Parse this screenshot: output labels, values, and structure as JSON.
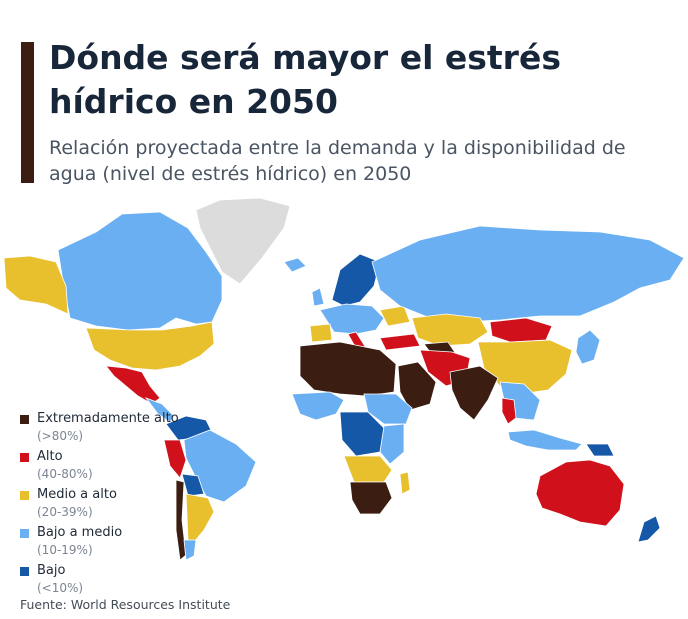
{
  "header": {
    "title": "Dónde será mayor el estrés hídrico en 2050",
    "subtitle": "Relación proyectada entre la demanda y la disponibilidad de agua (nivel de estrés hídrico) en 2050"
  },
  "legend": [
    {
      "label": "Extremadamente alto",
      "range": "(>80%)",
      "color": "#3b1d12"
    },
    {
      "label": "Alto",
      "range": "(40-80%)",
      "color": "#d0111b"
    },
    {
      "label": "Medio a alto",
      "range": "(20-39%)",
      "color": "#e8bf2d"
    },
    {
      "label": "Bajo a medio",
      "range": "(10-19%)",
      "color": "#6aaff2"
    },
    {
      "label": "Bajo",
      "range": "(<10%)",
      "color": "#1558a8"
    }
  ],
  "colors": {
    "no_data": "#dcdcdc",
    "background": "#ffffff",
    "accent_bar": "#3b1d12",
    "title": "#18263a"
  },
  "map": {
    "regions": [
      {
        "name": "alaska",
        "level": "Medio a alto"
      },
      {
        "name": "canada",
        "level": "Bajo a medio"
      },
      {
        "name": "greenland",
        "level": "no data"
      },
      {
        "name": "usa",
        "level": "Medio a alto"
      },
      {
        "name": "mexico",
        "level": "Alto"
      },
      {
        "name": "central-america",
        "level": "Bajo a medio"
      },
      {
        "name": "venezuela-colombia",
        "level": "Bajo"
      },
      {
        "name": "brazil",
        "level": "Bajo a medio"
      },
      {
        "name": "peru",
        "level": "Alto"
      },
      {
        "name": "bolivia",
        "level": "Bajo"
      },
      {
        "name": "chile",
        "level": "Extremadamente alto"
      },
      {
        "name": "argentina",
        "level": "Medio a alto"
      },
      {
        "name": "patagonia",
        "level": "Bajo a medio"
      },
      {
        "name": "iceland",
        "level": "Bajo a medio"
      },
      {
        "name": "uk",
        "level": "Bajo a medio"
      },
      {
        "name": "scandinavia",
        "level": "Bajo"
      },
      {
        "name": "west-europe",
        "level": "Bajo a medio"
      },
      {
        "name": "spain",
        "level": "Medio a alto"
      },
      {
        "name": "italy",
        "level": "Alto"
      },
      {
        "name": "turkey",
        "level": "Alto"
      },
      {
        "name": "ukraine",
        "level": "Medio a alto"
      },
      {
        "name": "russia",
        "level": "Bajo a medio"
      },
      {
        "name": "kazakhstan",
        "level": "Medio a alto"
      },
      {
        "name": "central-asia",
        "level": "Extremadamente alto"
      },
      {
        "name": "iran-afghanistan",
        "level": "Alto"
      },
      {
        "name": "mongolia",
        "level": "Alto"
      },
      {
        "name": "china",
        "level": "Medio a alto"
      },
      {
        "name": "korea-japan",
        "level": "Bajo a medio"
      },
      {
        "name": "north-africa",
        "level": "Extremadamente alto"
      },
      {
        "name": "arabia",
        "level": "Extremadamente alto"
      },
      {
        "name": "west-africa",
        "level": "Bajo a medio"
      },
      {
        "name": "sudan-ethiopia",
        "level": "Bajo a medio"
      },
      {
        "name": "central-africa",
        "level": "Bajo"
      },
      {
        "name": "east-africa",
        "level": "Bajo a medio"
      },
      {
        "name": "angola-zambia",
        "level": "Medio a alto"
      },
      {
        "name": "southern-africa",
        "level": "Extremadamente alto"
      },
      {
        "name": "madagascar",
        "level": "Medio a alto"
      },
      {
        "name": "india",
        "level": "Extremadamente alto"
      },
      {
        "name": "southeast-asia",
        "level": "Bajo a medio"
      },
      {
        "name": "thailand",
        "level": "Alto"
      },
      {
        "name": "indonesia",
        "level": "Bajo a medio"
      },
      {
        "name": "papua",
        "level": "Bajo"
      },
      {
        "name": "australia",
        "level": "Alto"
      },
      {
        "name": "new-zealand",
        "level": "Bajo"
      }
    ]
  },
  "source": "Fuente: World Resources Institute"
}
